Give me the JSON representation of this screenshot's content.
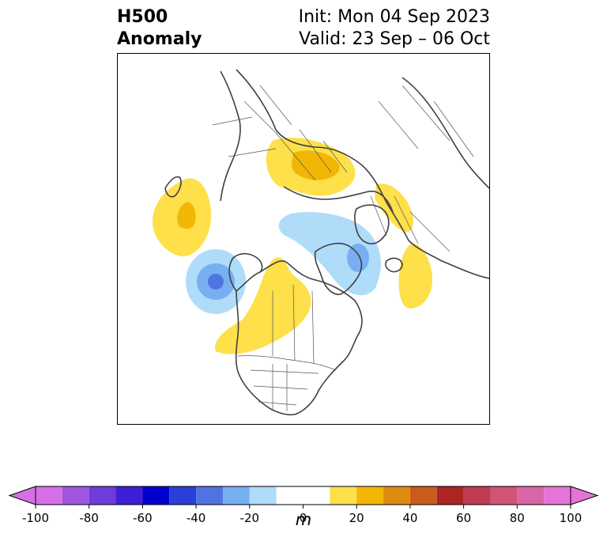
{
  "header": {
    "title_line1": "H500",
    "title_line2": "Anomaly",
    "init_label": "Init: Mon 04 Sep 2023",
    "valid_label": "Valid: 23 Sep – 06 Oct"
  },
  "colorbar": {
    "unit": "m",
    "tick_labels": [
      "-100",
      "-80",
      "-60",
      "-40",
      "-20",
      "0",
      "20",
      "40",
      "60",
      "80",
      "100"
    ],
    "levels": [
      -100,
      -90,
      -80,
      -70,
      -60,
      -50,
      -40,
      -30,
      -20,
      -10,
      10,
      20,
      30,
      40,
      50,
      60,
      70,
      80,
      90,
      100
    ],
    "colors": [
      "#d66fe6",
      "#9f55e0",
      "#6e3bdc",
      "#3d1fd6",
      "#0000cc",
      "#2b3fd8",
      "#4f74e2",
      "#78aff2",
      "#aedcf9",
      "#ffffff",
      "#fde04a",
      "#f2b705",
      "#de8b12",
      "#c85c1c",
      "#ab2525",
      "#c23b55",
      "#cf5478",
      "#d865a6",
      "#e574d6"
    ],
    "extend": "both"
  },
  "map": {
    "projection": "north-polar-stereographic",
    "anomalies": [
      {
        "region": "Siberia / Central Russia",
        "sign": "positive",
        "peak_m": 30
      },
      {
        "region": "Western Russia / Ukraine",
        "sign": "positive",
        "peak_m": 20
      },
      {
        "region": "North Atlantic (east of Greenland)",
        "sign": "positive",
        "peak_m": 20
      },
      {
        "region": "Western Canada / Northwest US",
        "sign": "positive",
        "peak_m": 20
      },
      {
        "region": "North Pacific (Aleutians)",
        "sign": "positive",
        "peak_m": 30
      },
      {
        "region": "Gulf of Alaska",
        "sign": "negative",
        "peak_m": -40
      },
      {
        "region": "Greenland / Baffin Bay / Arctic",
        "sign": "negative",
        "peak_m": -30
      }
    ]
  }
}
